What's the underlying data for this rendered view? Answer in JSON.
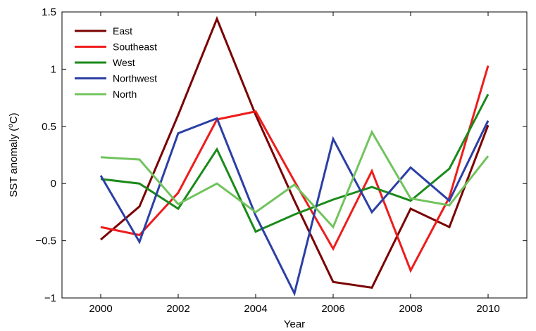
{
  "chart_data": {
    "type": "line",
    "xlabel": "Year",
    "ylabel_main": "SST anomaly (",
    "ylabel_sup": "o",
    "ylabel_end": "C)",
    "xlim": [
      1999,
      2011
    ],
    "ylim": [
      -1,
      1.5
    ],
    "x_ticks": [
      2000,
      2002,
      2004,
      2006,
      2008,
      2010
    ],
    "y_ticks": [
      -1,
      -0.5,
      0,
      0.5,
      1,
      1.5
    ],
    "y_tick_labels": [
      "−1",
      "−0.5",
      "0",
      "0.5",
      "1",
      "1.5"
    ],
    "grid": false,
    "legend_position": "top-left",
    "x": [
      2000,
      2001,
      2002,
      2003,
      2004,
      2005,
      2006,
      2007,
      2008,
      2009,
      2010
    ],
    "series": [
      {
        "name": "East",
        "color": "#7a0000",
        "values": [
          -0.49,
          -0.2,
          0.6,
          1.44,
          0.6,
          -0.15,
          -0.86,
          -0.91,
          -0.22,
          -0.38,
          0.51
        ]
      },
      {
        "name": "Southeast",
        "color": "#ee1c1c",
        "values": [
          -0.38,
          -0.45,
          -0.08,
          0.56,
          0.63,
          0.02,
          -0.57,
          0.11,
          -0.76,
          -0.12,
          1.03
        ]
      },
      {
        "name": "West",
        "color": "#1a8a1a",
        "values": [
          0.04,
          0.0,
          -0.22,
          0.3,
          -0.42,
          -0.27,
          -0.14,
          -0.03,
          -0.15,
          0.13,
          0.78
        ]
      },
      {
        "name": "Northwest",
        "color": "#2b3fa5",
        "values": [
          0.07,
          -0.51,
          0.44,
          0.57,
          -0.28,
          -0.96,
          0.39,
          -0.25,
          0.14,
          -0.15,
          0.55
        ]
      },
      {
        "name": "North",
        "color": "#72c35e",
        "values": [
          0.23,
          0.21,
          -0.18,
          0.0,
          -0.25,
          -0.01,
          -0.38,
          0.45,
          -0.13,
          -0.19,
          0.24
        ]
      }
    ]
  }
}
